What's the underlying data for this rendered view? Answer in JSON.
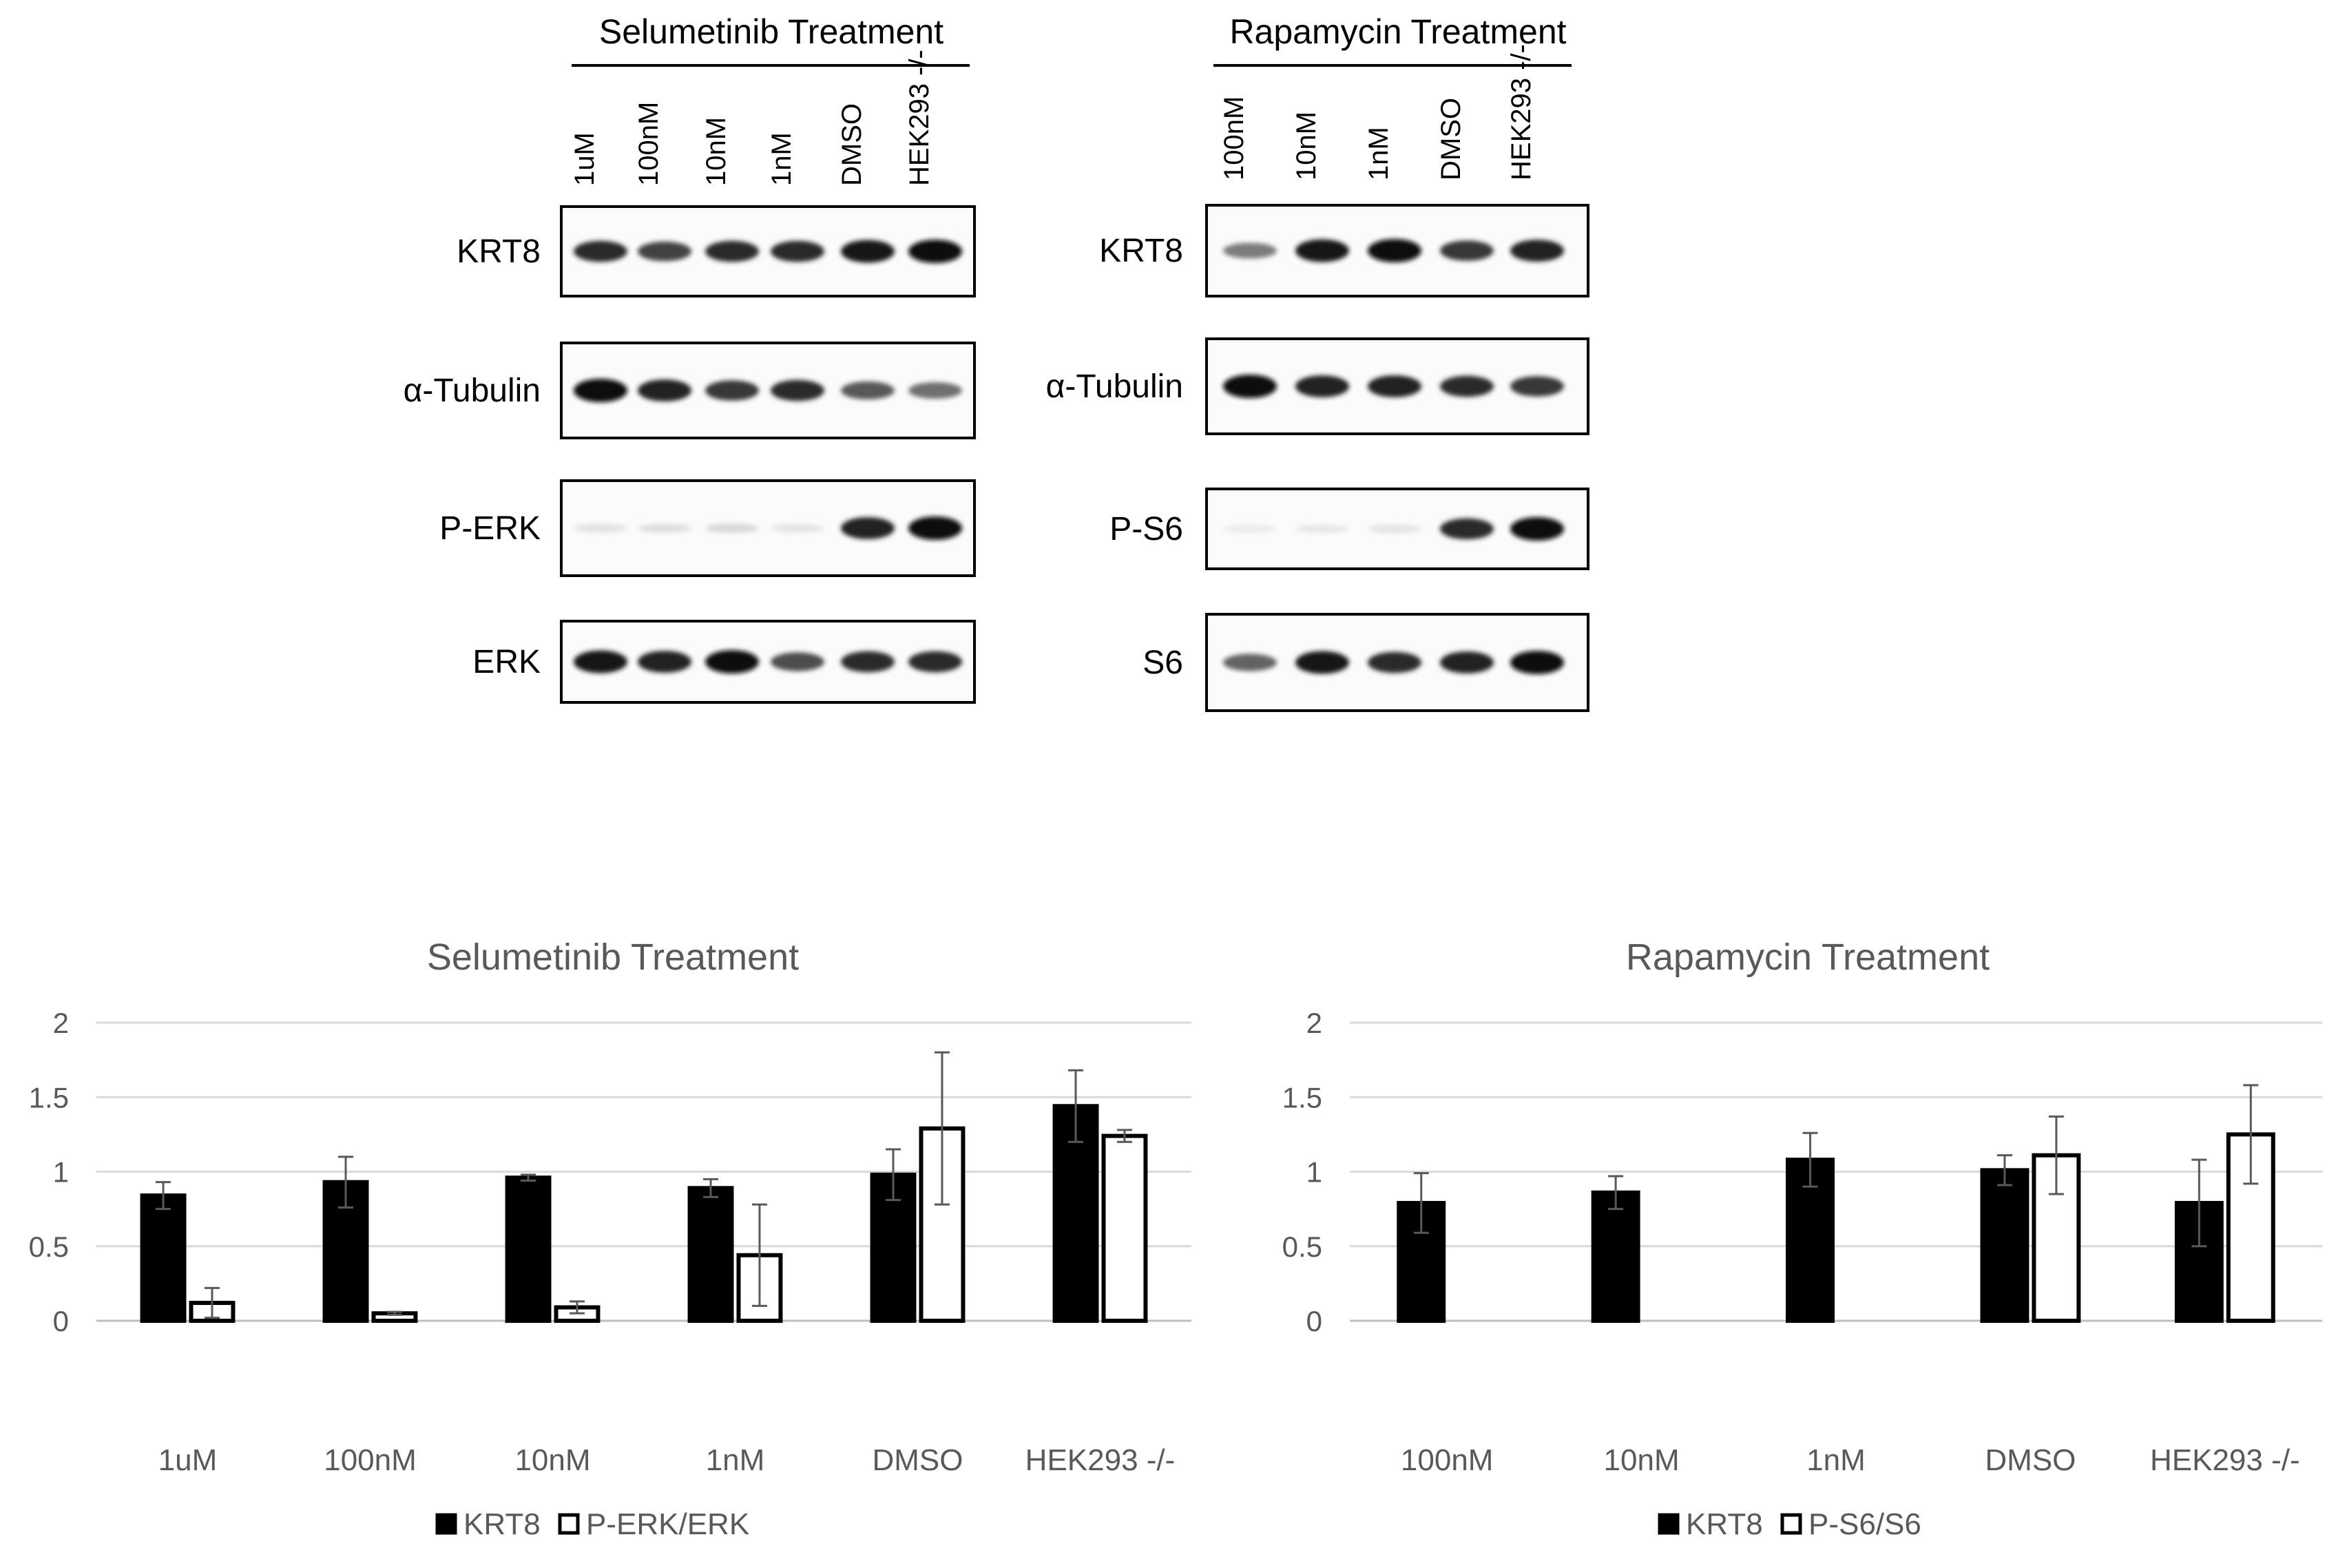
{
  "blots": [
    {
      "title": "Selumetinib Treatment",
      "lanes": [
        "1uM",
        "100nM",
        "10nM",
        "1nM",
        "DMSO",
        "HEK293 -/-"
      ],
      "rows": [
        {
          "label": "KRT8",
          "intensity": [
            0.85,
            0.75,
            0.85,
            0.85,
            0.95,
            1.0
          ]
        },
        {
          "label": "α-Tubulin",
          "intensity": [
            1.0,
            0.9,
            0.8,
            0.85,
            0.65,
            0.55
          ]
        },
        {
          "label": "P-ERK",
          "intensity": [
            0.04,
            0.06,
            0.08,
            0.03,
            0.9,
            1.0
          ]
        },
        {
          "label": "ERK",
          "intensity": [
            0.95,
            0.9,
            1.0,
            0.7,
            0.85,
            0.85
          ]
        }
      ]
    },
    {
      "title": "Rapamycin Treatment",
      "lanes": [
        "100nM",
        "10nM",
        "1nM",
        "DMSO",
        "HEK293 -/-"
      ],
      "rows": [
        {
          "label": "KRT8",
          "intensity": [
            0.5,
            0.95,
            1.0,
            0.8,
            0.9
          ]
        },
        {
          "label": "α-Tubulin",
          "intensity": [
            1.0,
            0.9,
            0.9,
            0.85,
            0.8
          ]
        },
        {
          "label": "P-S6",
          "intensity": [
            0.0,
            0.02,
            0.03,
            0.85,
            1.0
          ]
        },
        {
          "label": "S6",
          "intensity": [
            0.6,
            0.95,
            0.85,
            0.9,
            1.0
          ]
        }
      ]
    }
  ],
  "chart_data": [
    {
      "type": "bar",
      "title": "Selumetinib Treatment",
      "categories": [
        "1uM",
        "100nM",
        "10nM",
        "1nM",
        "DMSO",
        "HEK293 -/-"
      ],
      "ylim": [
        0,
        2
      ],
      "yticks": [
        "0",
        "0.5",
        "1",
        "1.5",
        "2"
      ],
      "grid": true,
      "legend": "bottom",
      "series": [
        {
          "name": "KRT8",
          "fill": "#000000",
          "values": [
            0.84,
            0.93,
            0.96,
            0.89,
            0.98,
            1.44
          ],
          "errors": [
            0.09,
            0.17,
            0.02,
            0.06,
            0.17,
            0.24
          ]
        },
        {
          "name": "P-ERK/ERK",
          "fill": "#ffffff",
          "values": [
            0.12,
            0.05,
            0.09,
            0.44,
            1.29,
            1.24
          ],
          "errors": [
            0.1,
            0.01,
            0.04,
            0.34,
            0.51,
            0.04
          ]
        }
      ]
    },
    {
      "type": "bar",
      "title": "Rapamycin Treatment",
      "categories": [
        "100nM",
        "10nM",
        "1nM",
        "DMSO",
        "HEK293 -/-"
      ],
      "ylim": [
        0,
        2
      ],
      "yticks": [
        "0",
        "0.5",
        "1",
        "1.5",
        "2"
      ],
      "grid": true,
      "legend": "bottom",
      "series": [
        {
          "name": "KRT8",
          "fill": "#000000",
          "values": [
            0.79,
            0.86,
            1.08,
            1.01,
            0.79
          ],
          "errors": [
            0.2,
            0.11,
            0.18,
            0.1,
            0.29
          ]
        },
        {
          "name": "P-S6/S6",
          "fill": "#ffffff",
          "values": [
            null,
            null,
            null,
            1.11,
            1.25
          ],
          "errors": [
            null,
            null,
            null,
            0.26,
            0.33
          ]
        }
      ]
    }
  ]
}
